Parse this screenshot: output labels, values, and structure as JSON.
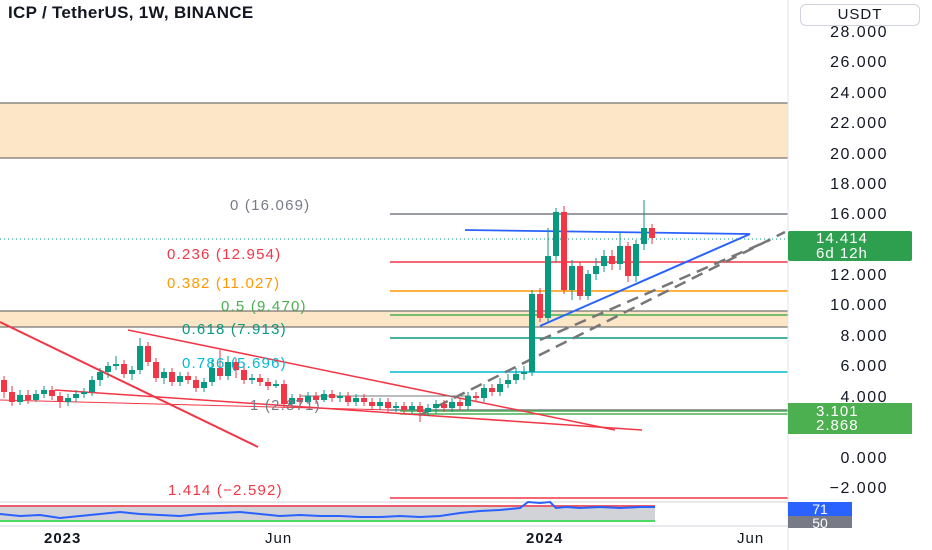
{
  "header": {
    "title": "ICP / TetherUS, 1W, BINANCE",
    "currency": "USDT"
  },
  "price_axis": {
    "ticks": [
      "28.000",
      "26.000",
      "24.000",
      "22.000",
      "20.000",
      "18.000",
      "16.000",
      "12.000",
      "10.000",
      "8.000",
      "6.000",
      "4.000",
      "0.000",
      "−2.000"
    ]
  },
  "time_axis": {
    "labels": [
      {
        "text": "2023",
        "bold": true
      },
      {
        "text": "Jun",
        "bold": false
      },
      {
        "text": "2024",
        "bold": true
      },
      {
        "text": "Jun",
        "bold": false
      }
    ]
  },
  "fib_levels": [
    {
      "ratio": "0",
      "price": "16.069",
      "text": "0 (16.069)",
      "color": "#787b86"
    },
    {
      "ratio": "0.236",
      "price": "12.954",
      "text": "0.236 (12.954)",
      "color": "#f23645"
    },
    {
      "ratio": "0.382",
      "price": "11.027",
      "text": "0.382 (11.027)",
      "color": "#ff9800"
    },
    {
      "ratio": "0.5",
      "price": "9.470",
      "text": "0.5 (9.470)",
      "color": "#4caf50"
    },
    {
      "ratio": "0.618",
      "price": "7.913",
      "text": "0.618 (7.913)",
      "color": "#089981"
    },
    {
      "ratio": "0.786",
      "price": "5.696",
      "text": "0.786 (5.696)",
      "color": "#00bcd4"
    },
    {
      "ratio": "1",
      "price": "2.871",
      "text": "1 (2.871)",
      "color": "#787b86"
    },
    {
      "ratio": "1.414",
      "price": "−2.592",
      "text": "1.414 (−2.592)",
      "color": "#f23645"
    }
  ],
  "price_labels": {
    "last_price": "14.414",
    "countdown": "6d 12h",
    "last_color": "#2e9e4f",
    "level_a": "3.101",
    "level_b": "2.868",
    "level_color": "#4caf50"
  },
  "rsi": {
    "value": "71",
    "value_color": "#2962ff",
    "mid": "50",
    "mid_color": "#787b86"
  },
  "colors": {
    "up": "#089981",
    "down": "#f23645",
    "trendline_red": "#f23645",
    "trendline_blue": "#2962ff",
    "zone_fill": "#fde3c4",
    "zone_border": "#555555"
  }
}
